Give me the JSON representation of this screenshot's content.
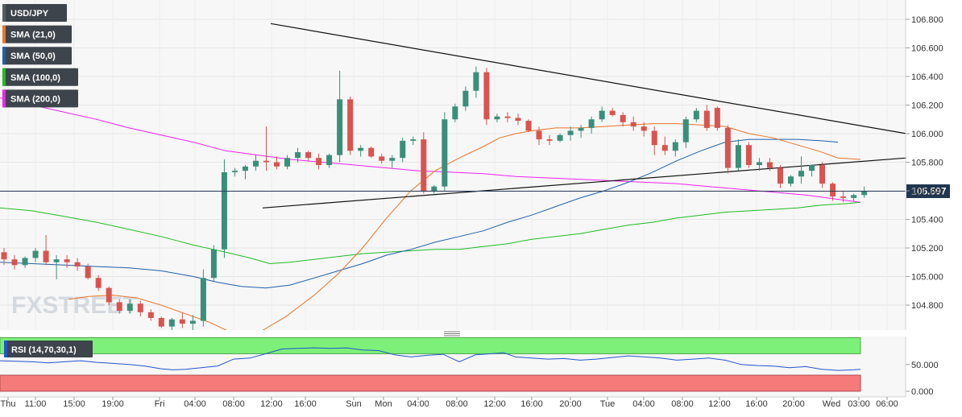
{
  "chart_data": {
    "type": "candlestick",
    "symbol": "USD/JPY",
    "price_axis": {
      "ticks": [
        "106.800",
        "106.600",
        "106.400",
        "106.200",
        "106.000",
        "105.800",
        "105.600",
        "105.400",
        "105.200",
        "105.000",
        "104.800"
      ],
      "tick_values": [
        106.8,
        106.6,
        106.4,
        106.2,
        106.0,
        105.8,
        105.6,
        105.4,
        105.2,
        105.0,
        104.8
      ],
      "range": [
        104.64,
        106.9
      ]
    },
    "current_price": {
      "label": "105.597",
      "value": 105.597
    },
    "time_axis": {
      "labels": [
        "Thu",
        "11:00",
        "15:00",
        "19:00",
        "Fri",
        "04:00",
        "08:00",
        "12:00",
        "16:00",
        "Sun",
        "Mon",
        "04:00",
        "08:00",
        "12:00",
        "16:00",
        "20:00",
        "Tue",
        "04:00",
        "08:00",
        "12:00",
        "16:00",
        "20:00",
        "Wed",
        "03:00",
        "06:00"
      ]
    },
    "legend": [
      {
        "label": "USD/JPY",
        "color": "#555e66"
      },
      {
        "label": "SMA (21,0)",
        "color": "#e8752a"
      },
      {
        "label": "SMA (50,0)",
        "color": "#1f5fa8"
      },
      {
        "label": "SMA (100,0)",
        "color": "#22bb22"
      },
      {
        "label": "SMA (200,0)",
        "color": "#ee22ee"
      }
    ],
    "colors": {
      "up": "#3a8f7a",
      "down": "#d9534f"
    },
    "watermark": "FXSTREET",
    "candles": [
      [
        105.17,
        105.2,
        105.08,
        105.12
      ],
      [
        105.12,
        105.15,
        105.05,
        105.08
      ],
      [
        105.08,
        105.14,
        105.06,
        105.13
      ],
      [
        105.13,
        105.2,
        105.1,
        105.18
      ],
      [
        105.18,
        105.29,
        105.08,
        105.1
      ],
      [
        105.1,
        105.15,
        104.98,
        105.12
      ],
      [
        105.12,
        105.15,
        105.06,
        105.1
      ],
      [
        105.1,
        105.13,
        105.04,
        105.07
      ],
      [
        105.07,
        105.09,
        104.98,
        104.99
      ],
      [
        104.99,
        105.01,
        104.9,
        104.92
      ],
      [
        104.92,
        104.93,
        104.8,
        104.82
      ],
      [
        104.82,
        104.84,
        104.74,
        104.76
      ],
      [
        104.76,
        104.84,
        104.74,
        104.81
      ],
      [
        104.81,
        104.83,
        104.72,
        104.75
      ],
      [
        104.75,
        104.77,
        104.69,
        104.71
      ],
      [
        104.71,
        104.72,
        104.64,
        104.65
      ],
      [
        104.65,
        104.71,
        104.6,
        104.7
      ],
      [
        104.7,
        104.75,
        104.64,
        104.67
      ],
      [
        104.67,
        104.73,
        104.62,
        104.69
      ],
      [
        104.69,
        105.05,
        104.65,
        104.99
      ],
      [
        104.99,
        105.22,
        104.97,
        105.19
      ],
      [
        105.19,
        105.82,
        105.13,
        105.73
      ],
      [
        105.73,
        105.76,
        105.7,
        105.74
      ],
      [
        105.74,
        105.78,
        105.68,
        105.77
      ],
      [
        105.77,
        105.85,
        105.74,
        105.81
      ],
      [
        105.81,
        106.05,
        105.74,
        105.8
      ],
      [
        105.8,
        105.84,
        105.75,
        105.77
      ],
      [
        105.77,
        105.85,
        105.75,
        105.83
      ],
      [
        105.83,
        105.9,
        105.8,
        105.87
      ],
      [
        105.87,
        105.88,
        105.81,
        105.83
      ],
      [
        105.83,
        105.86,
        105.75,
        105.78
      ],
      [
        105.78,
        105.86,
        105.76,
        105.85
      ],
      [
        105.85,
        106.44,
        105.8,
        106.24
      ],
      [
        106.24,
        106.26,
        105.85,
        105.88
      ],
      [
        105.88,
        105.92,
        105.84,
        105.9
      ],
      [
        105.9,
        105.91,
        105.83,
        105.84
      ],
      [
        105.84,
        105.86,
        105.79,
        105.81
      ],
      [
        105.81,
        105.85,
        105.76,
        105.83
      ],
      [
        105.83,
        105.97,
        105.8,
        105.95
      ],
      [
        105.95,
        105.98,
        105.92,
        105.96
      ],
      [
        105.96,
        106.01,
        105.58,
        105.6
      ],
      [
        105.6,
        105.64,
        105.58,
        105.63
      ],
      [
        105.63,
        106.15,
        105.6,
        106.1
      ],
      [
        106.1,
        106.21,
        106.08,
        106.19
      ],
      [
        106.19,
        106.33,
        106.16,
        106.3
      ],
      [
        106.3,
        106.47,
        106.25,
        106.43
      ],
      [
        106.43,
        106.46,
        106.06,
        106.1
      ],
      [
        106.1,
        106.14,
        106.08,
        106.12
      ],
      [
        106.12,
        106.15,
        106.08,
        106.11
      ],
      [
        106.11,
        106.14,
        106.06,
        106.09
      ],
      [
        106.09,
        106.1,
        106.01,
        106.02
      ],
      [
        106.02,
        106.05,
        105.92,
        105.96
      ],
      [
        105.96,
        105.99,
        105.92,
        105.95
      ],
      [
        105.95,
        106.0,
        105.94,
        105.99
      ],
      [
        105.99,
        106.05,
        105.95,
        106.02
      ],
      [
        106.02,
        106.06,
        105.97,
        106.04
      ],
      [
        106.04,
        106.12,
        106.0,
        106.1
      ],
      [
        106.1,
        106.19,
        106.08,
        106.16
      ],
      [
        106.16,
        106.18,
        106.12,
        106.13
      ],
      [
        106.13,
        106.15,
        106.05,
        106.08
      ],
      [
        106.08,
        106.12,
        106.02,
        106.05
      ],
      [
        106.05,
        106.08,
        105.98,
        106.02
      ],
      [
        106.02,
        106.05,
        105.85,
        105.92
      ],
      [
        105.92,
        105.98,
        105.85,
        105.88
      ],
      [
        105.88,
        105.96,
        105.84,
        105.94
      ],
      [
        105.94,
        106.12,
        105.9,
        106.1
      ],
      [
        106.1,
        106.18,
        106.08,
        106.16
      ],
      [
        106.16,
        106.2,
        106.02,
        106.04
      ],
      [
        106.18,
        106.19,
        106.02,
        106.04
      ],
      [
        106.04,
        106.06,
        105.72,
        105.76
      ],
      [
        105.76,
        105.96,
        105.74,
        105.92
      ],
      [
        105.92,
        105.94,
        105.76,
        105.78
      ],
      [
        105.78,
        105.83,
        105.74,
        105.8
      ],
      [
        105.8,
        105.83,
        105.74,
        105.76
      ],
      [
        105.76,
        105.78,
        105.62,
        105.65
      ],
      [
        105.65,
        105.71,
        105.63,
        105.7
      ],
      [
        105.7,
        105.84,
        105.65,
        105.74
      ],
      [
        105.74,
        105.78,
        105.7,
        105.78
      ],
      [
        105.78,
        105.8,
        105.62,
        105.65
      ],
      [
        105.65,
        105.66,
        105.53,
        105.56
      ],
      [
        105.56,
        105.6,
        105.52,
        105.55
      ],
      [
        105.55,
        105.58,
        105.53,
        105.57
      ],
      [
        105.57,
        105.63,
        105.55,
        105.6
      ]
    ],
    "sma": {
      "sma21": [
        [
          85,
          104.84
        ],
        [
          110,
          104.86
        ],
        [
          140,
          104.87
        ],
        [
          170,
          104.85
        ],
        [
          200,
          104.8
        ],
        [
          230,
          104.74
        ],
        [
          260,
          104.68
        ],
        [
          290,
          104.6
        ],
        [
          325,
          104.62
        ],
        [
          355,
          104.72
        ],
        [
          390,
          104.87
        ],
        [
          420,
          105.02
        ],
        [
          450,
          105.2
        ],
        [
          480,
          105.41
        ],
        [
          510,
          105.6
        ],
        [
          540,
          105.74
        ],
        [
          570,
          105.83
        ],
        [
          600,
          105.91
        ],
        [
          620,
          105.97
        ],
        [
          640,
          106.0
        ],
        [
          660,
          106.02
        ],
        [
          690,
          106.04
        ],
        [
          720,
          106.04
        ],
        [
          750,
          106.05
        ],
        [
          780,
          106.06
        ],
        [
          810,
          106.07
        ],
        [
          840,
          106.07
        ],
        [
          870,
          106.06
        ],
        [
          900,
          106.05
        ],
        [
          930,
          106.0
        ],
        [
          960,
          105.97
        ],
        [
          990,
          105.92
        ],
        [
          1015,
          105.88
        ],
        [
          1040,
          105.83
        ],
        [
          1068,
          105.82
        ]
      ],
      "sma50": [
        [
          0,
          105.1
        ],
        [
          40,
          105.09
        ],
        [
          80,
          105.08
        ],
        [
          120,
          105.07
        ],
        [
          160,
          105.06
        ],
        [
          200,
          105.04
        ],
        [
          240,
          105.0
        ],
        [
          270,
          104.96
        ],
        [
          300,
          104.93
        ],
        [
          330,
          104.92
        ],
        [
          360,
          104.94
        ],
        [
          390,
          104.99
        ],
        [
          420,
          105.04
        ],
        [
          450,
          105.09
        ],
        [
          480,
          105.15
        ],
        [
          510,
          105.19
        ],
        [
          540,
          105.24
        ],
        [
          570,
          105.28
        ],
        [
          600,
          105.32
        ],
        [
          630,
          105.38
        ],
        [
          660,
          105.43
        ],
        [
          690,
          105.49
        ],
        [
          720,
          105.55
        ],
        [
          750,
          105.6
        ],
        [
          780,
          105.66
        ],
        [
          810,
          105.73
        ],
        [
          840,
          105.81
        ],
        [
          870,
          105.88
        ],
        [
          900,
          105.94
        ],
        [
          930,
          105.96
        ],
        [
          960,
          105.96
        ],
        [
          990,
          105.96
        ],
        [
          1020,
          105.95
        ],
        [
          1040,
          105.94
        ]
      ],
      "sma100": [
        [
          0,
          105.48
        ],
        [
          40,
          105.46
        ],
        [
          80,
          105.42
        ],
        [
          120,
          105.38
        ],
        [
          160,
          105.33
        ],
        [
          200,
          105.28
        ],
        [
          240,
          105.22
        ],
        [
          280,
          105.17
        ],
        [
          310,
          105.13
        ],
        [
          335,
          105.09
        ],
        [
          360,
          105.1
        ],
        [
          390,
          105.12
        ],
        [
          420,
          105.14
        ],
        [
          450,
          105.16
        ],
        [
          480,
          105.17
        ],
        [
          510,
          105.18
        ],
        [
          540,
          105.19
        ],
        [
          570,
          105.19
        ],
        [
          600,
          105.21
        ],
        [
          630,
          105.23
        ],
        [
          660,
          105.26
        ],
        [
          690,
          105.28
        ],
        [
          720,
          105.3
        ],
        [
          750,
          105.33
        ],
        [
          780,
          105.36
        ],
        [
          810,
          105.38
        ],
        [
          840,
          105.41
        ],
        [
          870,
          105.43
        ],
        [
          900,
          105.45
        ],
        [
          930,
          105.46
        ],
        [
          960,
          105.47
        ],
        [
          990,
          105.48
        ],
        [
          1020,
          105.5
        ],
        [
          1050,
          105.51
        ],
        [
          1068,
          105.52
        ]
      ],
      "sma200": [
        [
          0,
          106.25
        ],
        [
          40,
          106.2
        ],
        [
          80,
          106.15
        ],
        [
          120,
          106.1
        ],
        [
          160,
          106.04
        ],
        [
          200,
          105.99
        ],
        [
          240,
          105.94
        ],
        [
          280,
          105.88
        ],
        [
          320,
          105.85
        ],
        [
          360,
          105.82
        ],
        [
          400,
          105.8
        ],
        [
          440,
          105.78
        ],
        [
          480,
          105.76
        ],
        [
          520,
          105.74
        ],
        [
          560,
          105.73
        ],
        [
          600,
          105.72
        ],
        [
          640,
          105.7
        ],
        [
          680,
          105.69
        ],
        [
          720,
          105.68
        ],
        [
          760,
          105.67
        ],
        [
          800,
          105.66
        ],
        [
          840,
          105.65
        ],
        [
          880,
          105.63
        ],
        [
          920,
          105.61
        ],
        [
          960,
          105.59
        ],
        [
          1000,
          105.57
        ],
        [
          1040,
          105.54
        ],
        [
          1068,
          105.52
        ]
      ]
    },
    "trendlines": [
      {
        "from": [
          336,
          106.77
        ],
        "to": [
          1125,
          106.0
        ]
      },
      {
        "from": [
          326,
          105.48
        ],
        "to": [
          1125,
          105.83
        ]
      }
    ]
  },
  "rsi": {
    "label": "RSI (14,70,30,1)",
    "ticks": [
      "50.000",
      "0.000"
    ],
    "overbought": 70,
    "oversold": 30,
    "values": [
      [
        0,
        57
      ],
      [
        20,
        56
      ],
      [
        40,
        55
      ],
      [
        60,
        53
      ],
      [
        80,
        55
      ],
      [
        100,
        57
      ],
      [
        120,
        54
      ],
      [
        140,
        52
      ],
      [
        160,
        50
      ],
      [
        180,
        47
      ],
      [
        200,
        42
      ],
      [
        215,
        40
      ],
      [
        230,
        41
      ],
      [
        250,
        44
      ],
      [
        270,
        47
      ],
      [
        290,
        60
      ],
      [
        310,
        62
      ],
      [
        330,
        70
      ],
      [
        350,
        79
      ],
      [
        370,
        80
      ],
      [
        390,
        81
      ],
      [
        410,
        80
      ],
      [
        430,
        81
      ],
      [
        450,
        77
      ],
      [
        470,
        76
      ],
      [
        490,
        68
      ],
      [
        510,
        64
      ],
      [
        530,
        67
      ],
      [
        550,
        69
      ],
      [
        570,
        55
      ],
      [
        590,
        68
      ],
      [
        610,
        70
      ],
      [
        625,
        72
      ],
      [
        640,
        64
      ],
      [
        660,
        62
      ],
      [
        680,
        60
      ],
      [
        700,
        61
      ],
      [
        720,
        58
      ],
      [
        740,
        60
      ],
      [
        760,
        63
      ],
      [
        780,
        66
      ],
      [
        800,
        64
      ],
      [
        820,
        62
      ],
      [
        840,
        58
      ],
      [
        860,
        60
      ],
      [
        880,
        62
      ],
      [
        900,
        58
      ],
      [
        920,
        50
      ],
      [
        940,
        48
      ],
      [
        960,
        47
      ],
      [
        980,
        44
      ],
      [
        1000,
        46
      ],
      [
        1020,
        41
      ],
      [
        1040,
        39
      ],
      [
        1060,
        40
      ],
      [
        1068,
        41
      ]
    ]
  }
}
